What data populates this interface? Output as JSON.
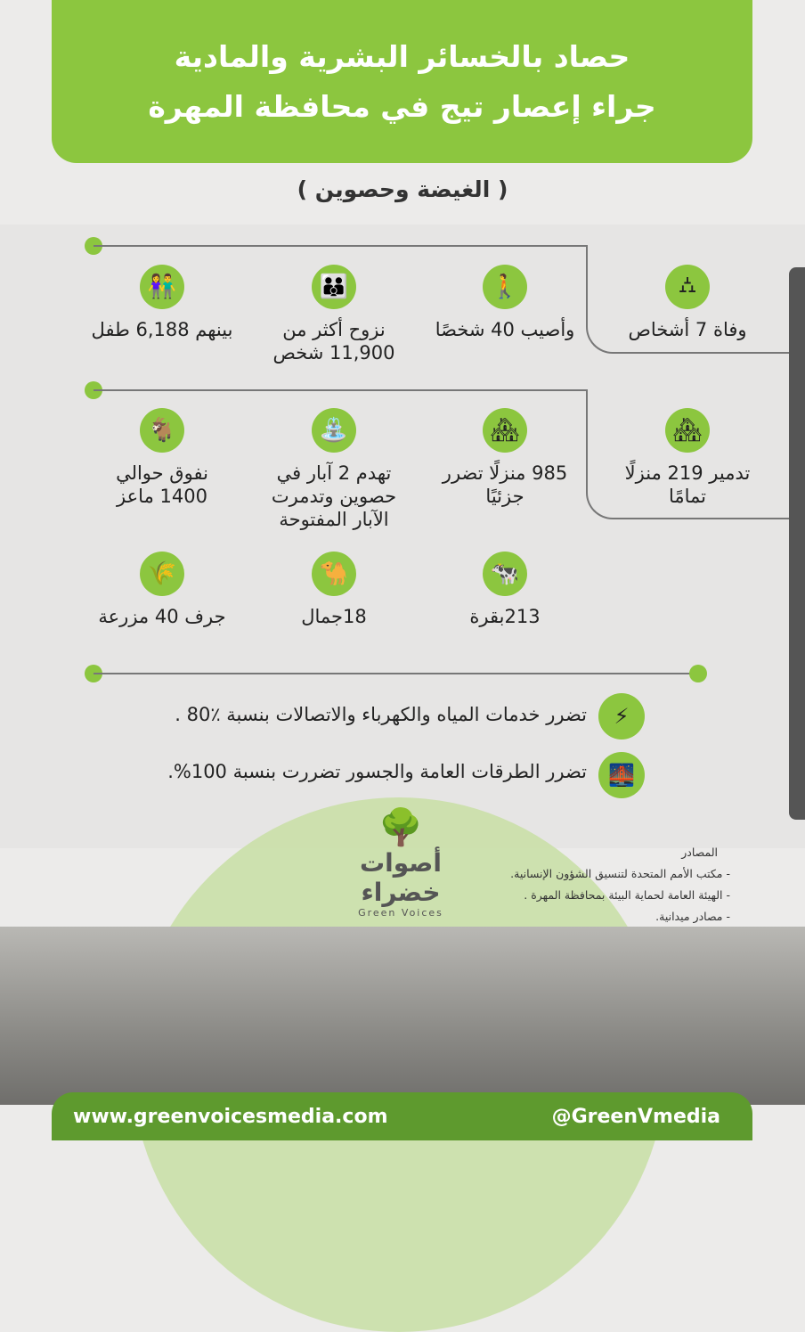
{
  "header": {
    "title_line1": "حصاد بالخسائر البشرية والمادية",
    "title_line2": "جراء إعصار تيج في محافظة المهرة"
  },
  "subtitle": "( الغيضة وحصوين )",
  "rows": [
    [
      {
        "icon": "tombstone-icon",
        "text": "وفاة 7 أشخاص"
      },
      {
        "icon": "injured-people-icon",
        "text": "وأصيب 40 شخصًا"
      },
      {
        "icon": "family-icon",
        "text": "نزوح أكثر من 11,900 شخص"
      },
      {
        "icon": "children-icon",
        "text": "بينهم 6,188 طفل"
      }
    ],
    [
      {
        "icon": "buildings-icon",
        "text": "تدمير 219 منزلًا تمامًا"
      },
      {
        "icon": "buildings-icon",
        "text": "985 منزلًا تضرر جزئيًا"
      },
      {
        "icon": "well-icon",
        "text": "تهدم 2 آبار في حصوين وتدمرت الآبار المفتوحة"
      },
      {
        "icon": "goat-icon",
        "text": "نفوق حوالي 1400 ماعز"
      }
    ],
    [
      {
        "icon": "cow-icon",
        "text": "213بقرة"
      },
      {
        "icon": "camel-icon",
        "text": "18جمال"
      },
      {
        "icon": "crops-icon",
        "text": "جرف 40 مزرعة"
      }
    ]
  ],
  "services": [
    {
      "icon": "utilities-icon",
      "text": "تضرر خدمات المياه والكهرباء والاتصالات بنسبة ٪80 ."
    },
    {
      "icon": "road-bridge-icon",
      "text": "تضرر الطرقات العامة والجسور تضررت بنسبة 100%."
    }
  ],
  "sources": {
    "title": "المصادر",
    "items": [
      "- مكتب الأمم المتحدة لتنسيق الشؤون الإنسانية.",
      "- الهيئة العامة لحماية البيئة بمحافظة المهرة .",
      "- مصادر ميدانية."
    ]
  },
  "logo": {
    "arabic": "أصوات خضراء",
    "english": "Green Voices"
  },
  "footer": {
    "website": "www.greenvoicesmedia.com",
    "handle": "@GreenVmedia"
  },
  "colors": {
    "accent": "#8cc63f",
    "footer": "#5e9a2e"
  }
}
